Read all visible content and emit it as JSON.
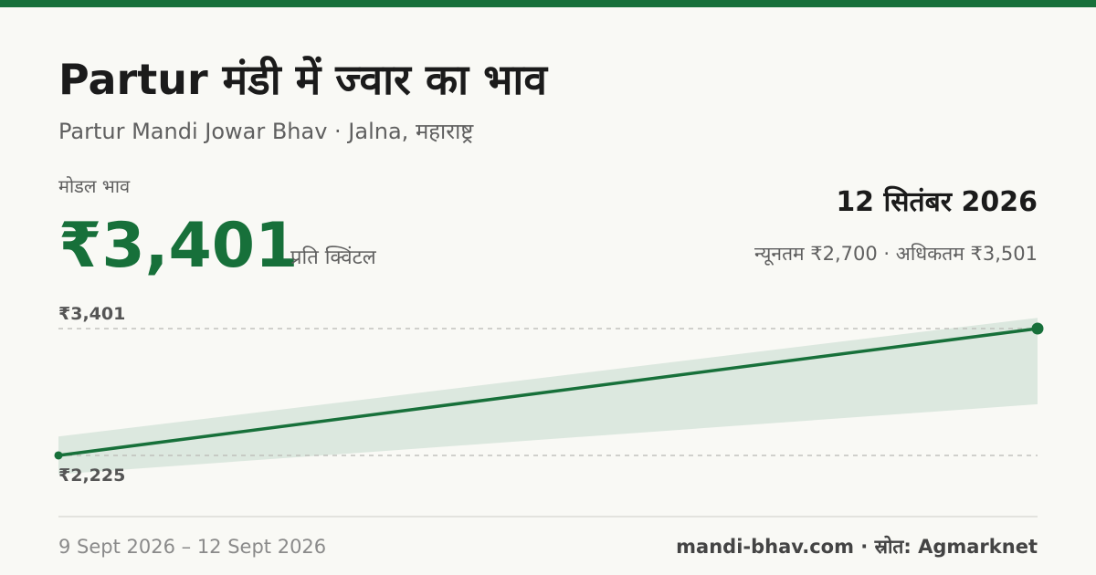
{
  "chart_data": {
    "type": "line",
    "title": "Partur मंडी में ज्वार का भाव",
    "subtitle": "Partur Mandi Jowar Bhav · Jalna, महाराष्ट्र",
    "headline_label": "मोडल भाव",
    "headline_value": "₹3,401",
    "headline_unit": "प्रति क्विंटल",
    "date": "12 सितंबर 2026",
    "range_summary": "न्यूनतम ₹2,700 · अधिकतम ₹3,501",
    "date_range": "9 Sept 2026 – 12 Sept 2026",
    "source": "mandi-bhav.com · स्रोत: Agmarknet",
    "categories": [
      null,
      null
    ],
    "series": [
      {
        "color": "#17703a",
        "values": [
          2225,
          3401
        ]
      }
    ],
    "band": {
      "color": "#dce8df",
      "min": [
        2050,
        2700
      ],
      "max": [
        2400,
        3501
      ]
    },
    "ylim": [
      1900,
      3600
    ],
    "yticks": [
      {
        "value": 3401,
        "label": "₹3,401"
      },
      {
        "value": 2225,
        "label": "₹2,225"
      }
    ],
    "grid": true
  }
}
